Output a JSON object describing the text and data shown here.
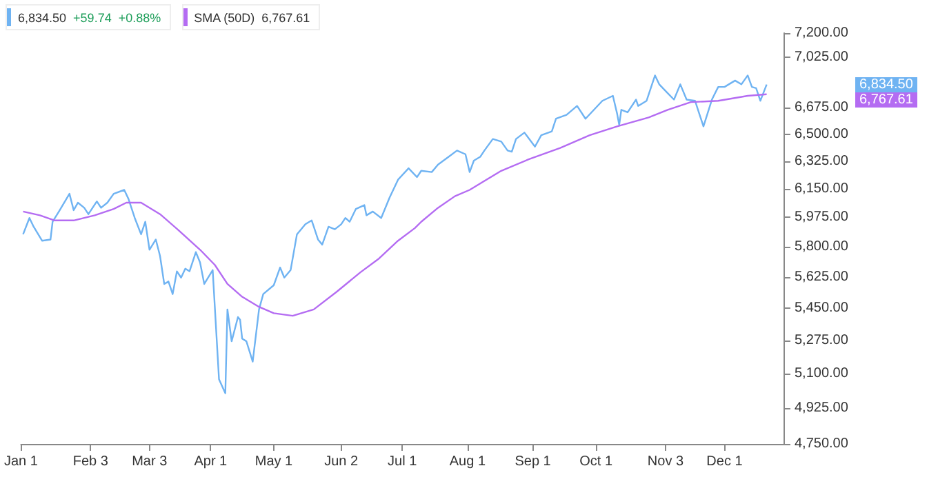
{
  "chart_data": {
    "type": "line",
    "log": true,
    "grid": false,
    "legend": "top left",
    "marker": "none",
    "line_style": "solid",
    "xlim": [
      "--01-01",
      "--12-29"
    ],
    "xticks": [
      {
        "value": "--01-01",
        "label": "Jan 1"
      },
      {
        "value": "--02-03",
        "label": "Feb 3"
      },
      {
        "value": "--03-03",
        "label": "Mar 3"
      },
      {
        "value": "--04-01",
        "label": "Apr 1"
      },
      {
        "value": "--05-01",
        "label": "May 1"
      },
      {
        "value": "--06-02",
        "label": "Jun 2"
      },
      {
        "value": "--07-01",
        "label": "Jul 1"
      },
      {
        "value": "--08-01",
        "label": "Aug 1"
      },
      {
        "value": "--09-01",
        "label": "Sep 1"
      },
      {
        "value": "--10-01",
        "label": "Oct 1"
      },
      {
        "value": "--11-03",
        "label": "Nov 3"
      },
      {
        "value": "--12-01",
        "label": "Dec 1"
      }
    ],
    "ylim": [
      4750,
      7200
    ],
    "yticks": [
      {
        "value": 4750,
        "label": "4,750.00"
      },
      {
        "value": 4925,
        "label": "4,925.00"
      },
      {
        "value": 5100,
        "label": "5,100.00"
      },
      {
        "value": 5275,
        "label": "5,275.00"
      },
      {
        "value": 5450,
        "label": "5,450.00"
      },
      {
        "value": 5625,
        "label": "5,625.00"
      },
      {
        "value": 5800,
        "label": "5,800.00"
      },
      {
        "value": 5975,
        "label": "5,975.00"
      },
      {
        "value": 6150,
        "label": "6,150.00"
      },
      {
        "value": 6325,
        "label": "6,325.00"
      },
      {
        "value": 6500,
        "label": "6,500.00"
      },
      {
        "value": 6675,
        "label": "6,675.00"
      },
      {
        "value": 7025,
        "label": "7,025.00"
      },
      {
        "value": 7200,
        "label": "7,200.00"
      }
    ],
    "annotations": [
      "6,834.50",
      "+59.74",
      "+0.88%",
      "6,767.61",
      "6,834.50",
      "6,767.61"
    ],
    "series": [
      {
        "color": "#6fb3f2",
        "x": [
          "--01-02",
          "--01-05",
          "--01-07",
          "--01-11",
          "--01-15",
          "--01-16",
          "--01-19",
          "--01-24",
          "--01-26",
          "--01-28",
          "--01-31",
          "--02-02",
          "--02-06",
          "--02-08",
          "--02-11",
          "--02-14",
          "--02-19",
          "--02-21",
          "--02-24",
          "--02-27",
          "--03-01",
          "--03-03",
          "--03-06",
          "--03-08",
          "--03-10",
          "--03-12",
          "--03-14",
          "--03-16",
          "--03-18",
          "--03-20",
          "--03-22",
          "--03-25",
          "--03-27",
          "--03-29",
          "--04-02",
          "--04-05",
          "--04-08",
          "--04-09",
          "--04-11",
          "--04-14",
          "--04-15",
          "--04-16",
          "--04-18",
          "--04-21",
          "--04-24",
          "--04-26",
          "--05-01",
          "--05-04",
          "--05-06",
          "--05-09",
          "--05-12",
          "--05-16",
          "--05-19",
          "--05-20",
          "--05-22",
          "--05-24",
          "--05-27",
          "--05-30",
          "--06-02",
          "--06-04",
          "--06-06",
          "--06-09",
          "--06-13",
          "--06-14",
          "--06-17",
          "--06-21",
          "--06-25",
          "--06-29",
          "--07-04",
          "--07-08",
          "--07-10",
          "--07-15",
          "--07-18",
          "--07-23",
          "--07-27",
          "--07-31",
          "--08-02",
          "--08-04",
          "--08-07",
          "--08-09",
          "--08-13",
          "--08-17",
          "--08-20",
          "--08-22",
          "--08-24",
          "--08-28",
          "--09-02",
          "--09-05",
          "--09-10",
          "--09-12",
          "--09-17",
          "--09-22",
          "--09-26",
          "--09-30",
          "--10-04",
          "--10-09",
          "--10-11",
          "--10-12",
          "--10-13",
          "--10-16",
          "--10-20",
          "--10-21",
          "--10-25",
          "--10-29",
          "--10-31",
          "--11-04",
          "--11-07",
          "--11-10",
          "--11-13",
          "--11-17",
          "--11-19",
          "--11-21",
          "--11-25",
          "--11-28",
          "--12-01",
          "--12-06",
          "--12-09",
          "--12-12",
          "--12-14",
          "--12-16",
          "--12-18",
          "--12-21"
        ],
        "values": [
          5873,
          5971,
          5918,
          5835,
          5842,
          5948,
          6010,
          6119,
          6018,
          6064,
          6033,
          5994,
          6072,
          6033,
          6064,
          6119,
          6143,
          6088,
          5971,
          5873,
          5948,
          5782,
          5842,
          5746,
          5585,
          5599,
          5528,
          5657,
          5621,
          5672,
          5657,
          5768,
          5708,
          5585,
          5664,
          5071,
          5000,
          5443,
          5270,
          5401,
          5387,
          5284,
          5270,
          5163,
          5443,
          5528,
          5578,
          5679,
          5621,
          5664,
          5873,
          5933,
          5956,
          5918,
          5842,
          5812,
          5918,
          5903,
          5933,
          5971,
          5948,
          6026,
          6049,
          5987,
          6010,
          5971,
          6096,
          6207,
          6279,
          6223,
          6263,
          6255,
          6303,
          6352,
          6393,
          6369,
          6255,
          6328,
          6352,
          6393,
          6468,
          6451,
          6393,
          6385,
          6468,
          6510,
          6418,
          6493,
          6518,
          6602,
          6628,
          6688,
          6602,
          6662,
          6723,
          6757,
          6636,
          6560,
          6662,
          6645,
          6731,
          6688,
          6723,
          6898,
          6836,
          6775,
          6731,
          6836,
          6731,
          6723,
          6636,
          6551,
          6731,
          6818,
          6818,
          6862,
          6836,
          6898,
          6818,
          6810,
          6723,
          6834.5
        ]
      },
      {
        "name": "SMA (50D)",
        "color": "#b46cf2",
        "x": [
          "--01-02",
          "--01-10",
          "--01-17",
          "--01-26",
          "--02-05",
          "--02-14",
          "--02-20",
          "--02-27",
          "--03-08",
          "--03-17",
          "--03-27",
          "--04-03",
          "--04-09",
          "--04-16",
          "--04-24",
          "--05-01",
          "--05-10",
          "--05-20",
          "--05-31",
          "--06-11",
          "--06-20",
          "--06-29",
          "--07-07",
          "--07-10",
          "--07-18",
          "--07-26",
          "--08-02",
          "--08-09",
          "--08-17",
          "--08-30",
          "--09-14",
          "--09-28",
          "--10-11",
          "--10-26",
          "--11-04",
          "--11-15",
          "--11-28",
          "--12-12",
          "--12-21"
        ],
        "values": [
          6010,
          5987,
          5956,
          5956,
          5987,
          6026,
          6064,
          6064,
          5994,
          5895,
          5782,
          5694,
          5585,
          5513,
          5457,
          5422,
          5408,
          5443,
          5542,
          5650,
          5731,
          5835,
          5910,
          5948,
          6033,
          6104,
          6143,
          6199,
          6263,
          6336,
          6410,
          6493,
          6551,
          6611,
          6662,
          6714,
          6723,
          6757,
          6767.61
        ]
      }
    ]
  }
}
